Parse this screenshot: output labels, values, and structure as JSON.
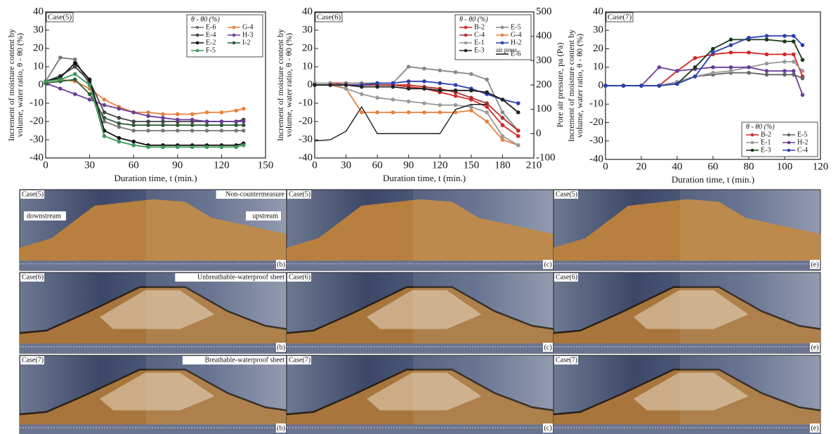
{
  "chart_data": [
    {
      "type": "line",
      "annotation": "Case(5)",
      "xlabel": "Duration time, t (min.)",
      "ylabel": [
        "Increment of moisture content by",
        "volume, water ratio, θ - θ0 (%)"
      ],
      "legend_title": "θ - θ0 (%)",
      "legend": "upper right",
      "xlim": [
        0,
        150
      ],
      "xticks": [
        0,
        30,
        60,
        90,
        120,
        150
      ],
      "ylim": [
        -40,
        40
      ],
      "yticks": [
        -40,
        -30,
        -20,
        -10,
        0,
        10,
        20,
        30,
        40
      ],
      "x": [
        0,
        10,
        20,
        30,
        40,
        50,
        60,
        70,
        80,
        90,
        100,
        110,
        120,
        130,
        135
      ],
      "series": [
        {
          "name": "E-6",
          "color": "#777777",
          "values": [
            2,
            15,
            14,
            0,
            -20,
            -23,
            -25,
            -25,
            -25,
            -25,
            -25,
            -25,
            -25,
            -25,
            -25
          ]
        },
        {
          "name": "G-4",
          "color": "#e8803a",
          "values": [
            2,
            3,
            2,
            -2,
            -8,
            -12,
            -15,
            -15,
            -16,
            -16,
            -16,
            -15,
            -15,
            -14,
            -13
          ]
        },
        {
          "name": "E-4",
          "color": "#444444",
          "values": [
            2,
            5,
            10,
            2,
            -15,
            -18,
            -20,
            -20,
            -20,
            -20,
            -20,
            -20,
            -20,
            -20,
            -19
          ]
        },
        {
          "name": "H-3",
          "color": "#6a3d9a",
          "values": [
            1,
            -2,
            -5,
            -8,
            -11,
            -13,
            -15,
            -17,
            -18,
            -19,
            -19,
            -20,
            -20,
            -20,
            -20
          ]
        },
        {
          "name": "E-2",
          "color": "#111111",
          "values": [
            2,
            4,
            12,
            3,
            -25,
            -29,
            -31,
            -33,
            -33,
            -33,
            -33,
            -33,
            -33,
            -33,
            -32
          ]
        },
        {
          "name": "I-2",
          "color": "#2f5d3a",
          "values": [
            1,
            2,
            3,
            -5,
            -18,
            -21,
            -22,
            -22,
            -22,
            -22,
            -22,
            -22,
            -22,
            -22,
            -22
          ]
        },
        {
          "name": "F-5",
          "color": "#3a9a5a",
          "values": [
            2,
            3,
            6,
            0,
            -28,
            -31,
            -33,
            -34,
            -34,
            -34,
            -34,
            -34,
            -34,
            -34,
            -33
          ]
        }
      ]
    },
    {
      "type": "line",
      "annotation": "Case(6)",
      "xlabel": "Duration time, t (min.)",
      "ylabel": [
        "Increment of moisture content by",
        "volume, water ratio, θ - θ0 (%)"
      ],
      "y2label": "Pore air pressure, pa (Pa)",
      "legend_title": "θ - θ0 (%)",
      "legend": "upper right",
      "legend_note": "air press.",
      "xlim": [
        0,
        210
      ],
      "xticks": [
        0,
        30,
        60,
        90,
        120,
        150,
        180,
        210
      ],
      "ylim": [
        -40,
        40
      ],
      "yticks": [
        -40,
        -30,
        -20,
        -10,
        0,
        10,
        20,
        30,
        40
      ],
      "y2lim": [
        -100,
        500
      ],
      "y2ticks": [
        -100,
        0,
        100,
        200,
        300,
        400,
        500
      ],
      "x": [
        0,
        15,
        30,
        45,
        60,
        75,
        90,
        105,
        120,
        135,
        150,
        165,
        180,
        195
      ],
      "series": [
        {
          "name": "B-2",
          "color": "#d62728",
          "values": [
            1,
            1,
            1,
            1,
            0,
            0,
            -1,
            -2,
            -4,
            -6,
            -8,
            -12,
            -22,
            -28
          ]
        },
        {
          "name": "E-5",
          "color": "#888888",
          "values": [
            0,
            0,
            1,
            1,
            1,
            1,
            10,
            9,
            8,
            7,
            6,
            3,
            -15,
            -25
          ]
        },
        {
          "name": "C-4",
          "color": "#b03030",
          "values": [
            0,
            0,
            0,
            0,
            0,
            0,
            0,
            -1,
            -2,
            -4,
            -7,
            -10,
            -18,
            -25
          ]
        },
        {
          "name": "G-4",
          "color": "#e8803a",
          "values": [
            0,
            0,
            -2,
            -15,
            -15,
            -15,
            -15,
            -15,
            -15,
            -15,
            -14,
            -20,
            -30,
            -33
          ]
        },
        {
          "name": "E-1",
          "color": "#999999",
          "values": [
            1,
            1,
            -2,
            -5,
            -7,
            -8,
            -9,
            -10,
            -11,
            -11,
            -12,
            -15,
            -28,
            -33
          ]
        },
        {
          "name": "H-2",
          "color": "#2a3fb0",
          "values": [
            0,
            0,
            0,
            0,
            1,
            1,
            2,
            2,
            1,
            0,
            -2,
            -5,
            -8,
            -10
          ]
        },
        {
          "name": "E-3",
          "color": "#222222",
          "values": [
            0,
            0,
            0,
            -1,
            -1,
            -1,
            -2,
            -2,
            -3,
            -3,
            -3,
            -4,
            -8,
            -15
          ]
        },
        {
          "name": "E-6",
          "color": "#111111",
          "axis": "y2",
          "values": [
            -30,
            -25,
            10,
            110,
            0,
            0,
            0,
            0,
            0,
            100,
            120,
            120,
            null,
            null
          ]
        }
      ]
    },
    {
      "type": "line",
      "annotation": "Case(7)",
      "xlabel": "Duration time, t (min.)",
      "ylabel": [
        "Increment of moisture content by",
        "volume, water ratio, θ - θ0 (%)"
      ],
      "legend_title": "θ - θ0 (%)",
      "legend": "lower right",
      "xlim": [
        0,
        120
      ],
      "xticks": [
        0,
        20,
        40,
        60,
        80,
        100,
        120
      ],
      "ylim": [
        -40,
        40
      ],
      "yticks": [
        -40,
        -30,
        -20,
        -10,
        0,
        10,
        20,
        30,
        40
      ],
      "x": [
        0,
        10,
        20,
        30,
        40,
        50,
        60,
        70,
        80,
        90,
        100,
        105,
        110
      ],
      "series": [
        {
          "name": "B-2",
          "color": "#d62728",
          "values": [
            0,
            0,
            0,
            0,
            8,
            15,
            17,
            18,
            18,
            17,
            17,
            17,
            5
          ]
        },
        {
          "name": "E-5",
          "color": "#666666",
          "values": [
            0,
            0,
            0,
            0,
            2,
            5,
            6,
            7,
            7,
            6,
            6,
            6,
            4
          ]
        },
        {
          "name": "E-1",
          "color": "#999999",
          "values": [
            0,
            0,
            0,
            0,
            2,
            5,
            7,
            8,
            10,
            12,
            13,
            13,
            8
          ]
        },
        {
          "name": "H-2",
          "color": "#6a3d9a",
          "values": [
            0,
            0,
            0,
            10,
            8,
            9,
            10,
            10,
            10,
            8,
            8,
            8,
            -5
          ]
        },
        {
          "name": "E-3",
          "color": "#1a3a1a",
          "values": [
            0,
            0,
            0,
            0,
            1,
            10,
            20,
            25,
            25,
            25,
            24,
            24,
            14
          ]
        },
        {
          "name": "C-4",
          "color": "#2a3fb0",
          "values": [
            0,
            0,
            0,
            0,
            1,
            5,
            18,
            22,
            26,
            27,
            27,
            27,
            22
          ]
        }
      ]
    }
  ],
  "photo_grid": {
    "panels": [
      {
        "case": "Case(5)",
        "tag": "(b)",
        "caption": "Non-countermeasure",
        "left": "downstream",
        "right": "upstream"
      },
      {
        "case": "Case(5)",
        "tag": "(c)"
      },
      {
        "case": "Case(5)",
        "tag": "(e)"
      },
      {
        "case": "Case(6)",
        "tag": "(b)",
        "caption": "Unbreathable-waterproof sheet"
      },
      {
        "case": "Case(6)",
        "tag": "(c)"
      },
      {
        "case": "Case(6)",
        "tag": "(e)"
      },
      {
        "case": "Case(7)",
        "tag": "(b)",
        "caption": "Breathable-waterproof sheet"
      },
      {
        "case": "Case(7)",
        "tag": "(c)"
      },
      {
        "case": "Case(7)",
        "tag": "(e)"
      }
    ]
  }
}
